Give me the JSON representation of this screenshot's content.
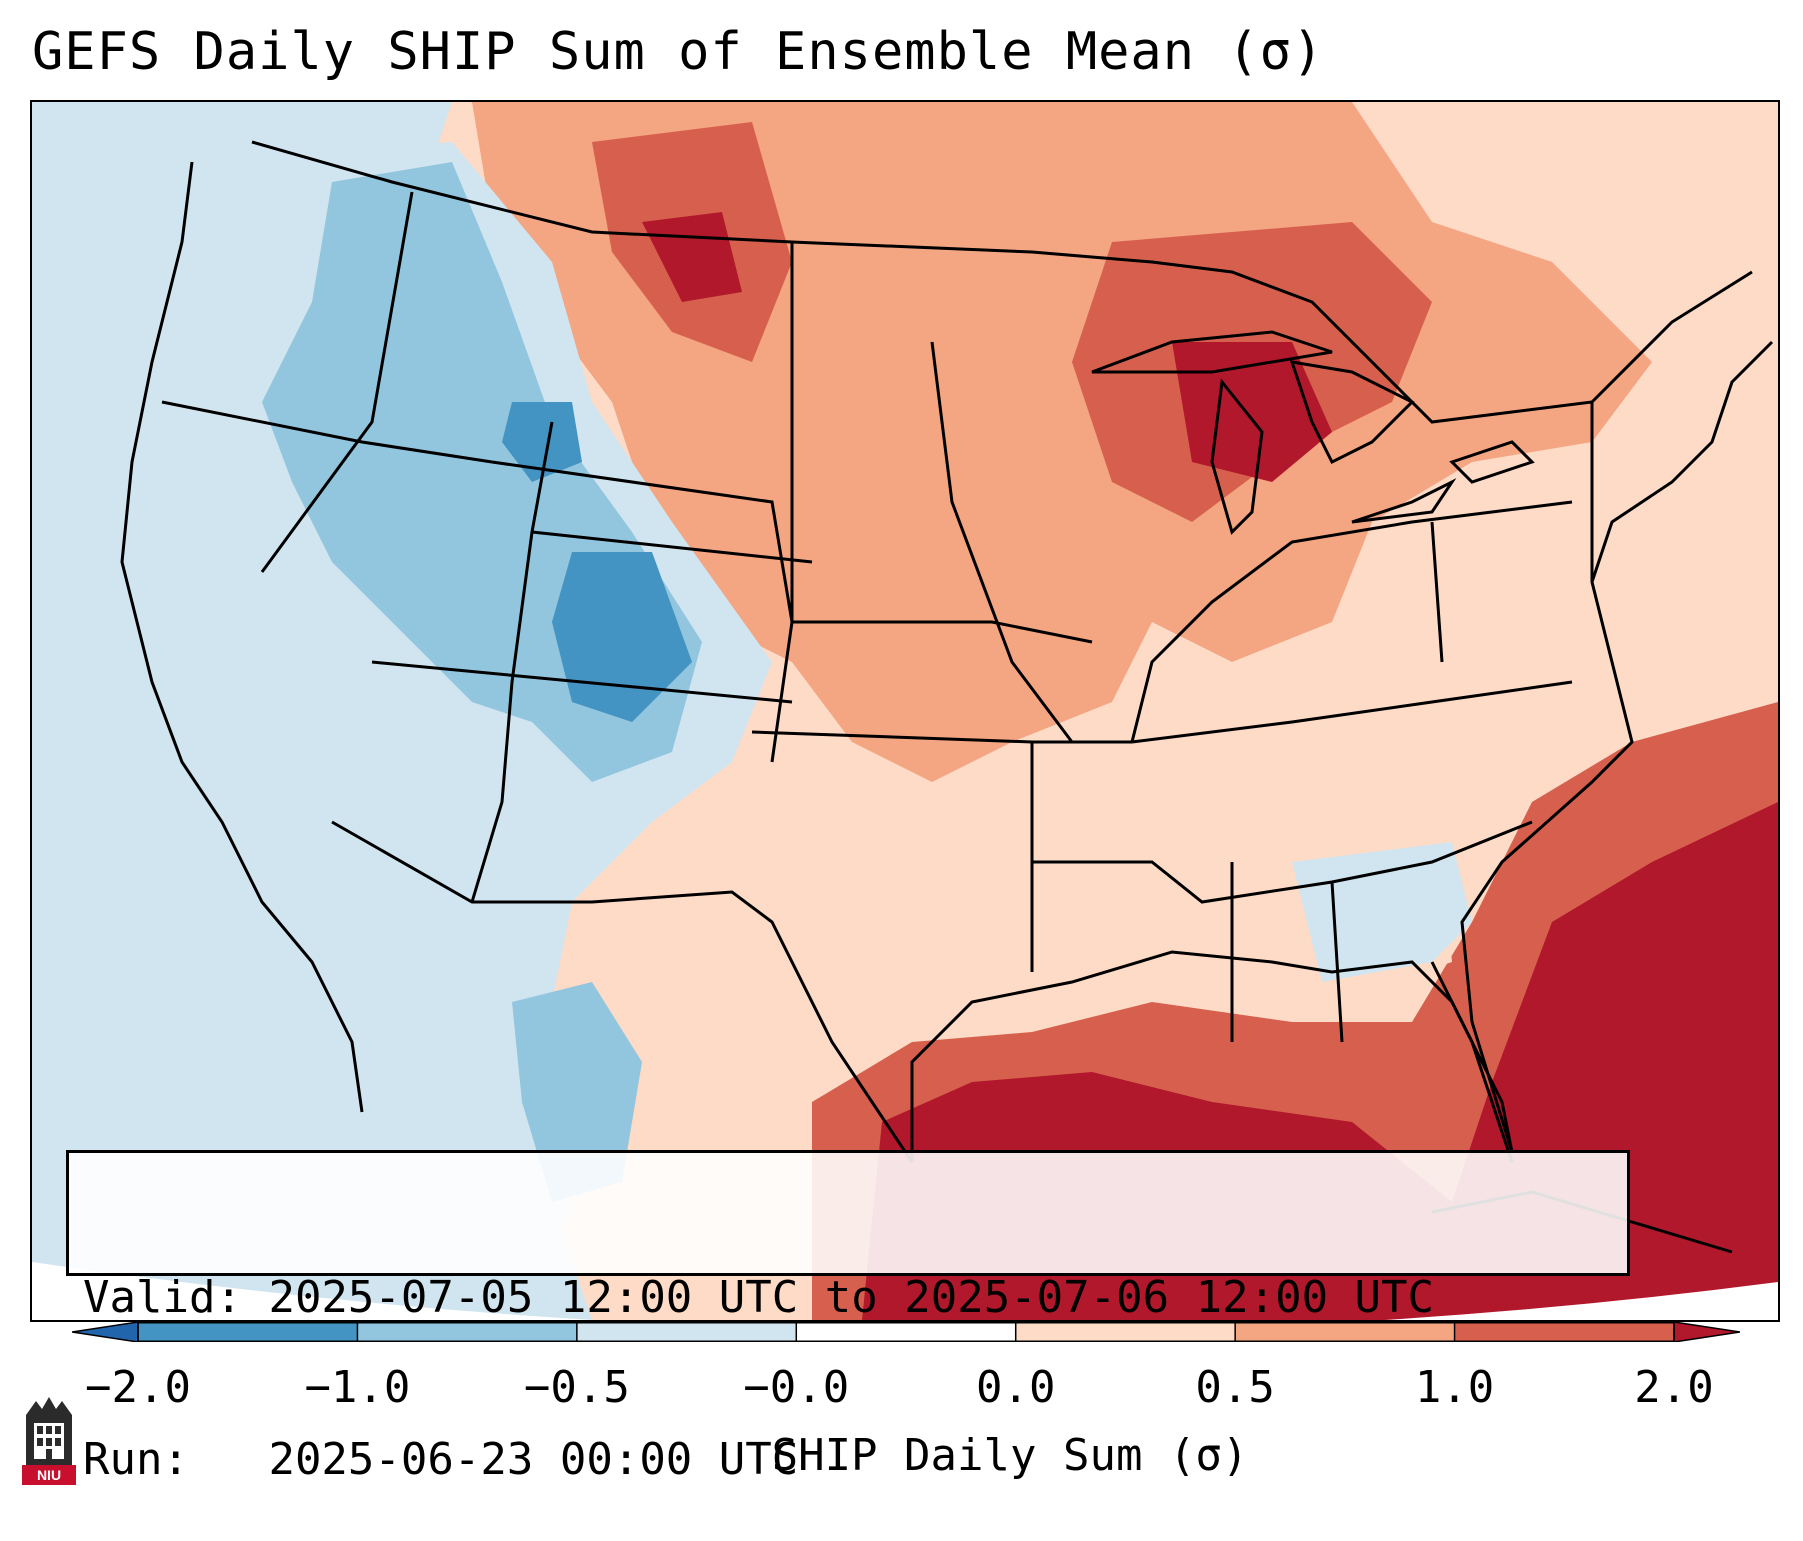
{
  "title": "GEFS Daily SHIP Sum of Ensemble Mean (σ)",
  "info": {
    "valid_label": "Valid:",
    "valid_value": "2025-07-05 12:00 UTC to 2025-07-06 12:00 UTC",
    "run_label": "Run:  ",
    "run_value": "2025-06-23 00:00 UTC"
  },
  "colorbar": {
    "label": "SHIP Daily Sum (σ)",
    "ticks": [
      "−2.0",
      "−1.0",
      "−0.5",
      "−0.0",
      "0.0",
      "0.5",
      "1.0",
      "2.0"
    ],
    "colors": [
      "#2166ac",
      "#4393c3",
      "#92c5de",
      "#d1e5f0",
      "#ffffff",
      "#fddbc7",
      "#f4a582",
      "#d6604d",
      "#b2182b"
    ]
  },
  "logo": {
    "text": "NIU",
    "color": "#c8102e"
  }
}
